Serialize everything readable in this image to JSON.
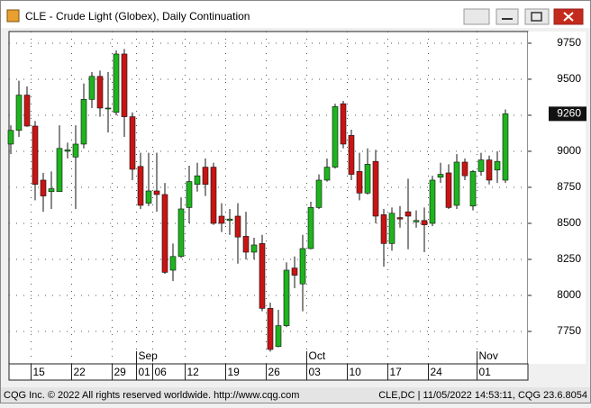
{
  "window_title": "CLE - Crude Light (Globex), Daily Continuation",
  "footer": {
    "left": "CQG Inc. © 2022 All rights reserved worldwide. http://www.cqg.com",
    "right": "CLE,DC | 11/05/2022 14:53:11, CQG 23.6.8054"
  },
  "chart_data": {
    "type": "candlestick",
    "categories": [
      "08-10",
      "08-11",
      "08-12",
      "08-15",
      "08-16",
      "08-17",
      "08-18",
      "08-19",
      "08-22",
      "08-23",
      "08-24",
      "08-25",
      "08-26",
      "08-29",
      "08-30",
      "08-31",
      "09-01",
      "09-02",
      "09-06",
      "09-07",
      "09-08",
      "09-09",
      "09-12",
      "09-13",
      "09-14",
      "09-15",
      "09-16",
      "09-19",
      "09-20",
      "09-21",
      "09-22",
      "09-23",
      "09-26",
      "09-27",
      "09-28",
      "09-29",
      "09-30",
      "10-03",
      "10-04",
      "10-05",
      "10-06",
      "10-07",
      "10-10",
      "10-11",
      "10-12",
      "10-13",
      "10-14",
      "10-17",
      "10-18",
      "10-19",
      "10-20",
      "10-21",
      "10-24",
      "10-25",
      "10-26",
      "10-27",
      "10-28",
      "10-31",
      "11-01",
      "11-02",
      "11-03",
      "11-04"
    ],
    "open": [
      9050,
      9145,
      9390,
      9175,
      8800,
      8720,
      8720,
      9000,
      8960,
      9050,
      9360,
      9520,
      9300,
      9270,
      9675,
      9240,
      8895,
      8640,
      8725,
      8700,
      8175,
      8270,
      8610,
      8770,
      8890,
      8890,
      8550,
      8520,
      8550,
      8410,
      8300,
      8360,
      7910,
      7645,
      7790,
      8190,
      8080,
      8325,
      8610,
      8800,
      8890,
      9330,
      9110,
      8860,
      8710,
      8930,
      8560,
      8360,
      8540,
      8580,
      8510,
      8520,
      8500,
      8820,
      8850,
      8625,
      8925,
      8620,
      8860,
      8940,
      8870,
      8800
    ],
    "high": [
      9180,
      9490,
      9450,
      9210,
      8850,
      8860,
      9180,
      9060,
      9180,
      9470,
      9550,
      9560,
      9550,
      9700,
      9710,
      9270,
      8990,
      8990,
      8990,
      8780,
      8360,
      8680,
      8900,
      8920,
      8950,
      8920,
      8640,
      8600,
      8640,
      8580,
      8400,
      8420,
      7950,
      7900,
      8230,
      8270,
      8420,
      8650,
      8840,
      8950,
      9330,
      9350,
      9150,
      8990,
      9020,
      9010,
      8600,
      8610,
      8620,
      8810,
      8590,
      8610,
      8830,
      8920,
      8910,
      8980,
      8950,
      8870,
      8990,
      8970,
      9000,
      9290
    ],
    "low": [
      8980,
      9100,
      9170,
      8660,
      8580,
      8600,
      8720,
      8950,
      8600,
      9020,
      9300,
      9240,
      9130,
      9250,
      9100,
      8800,
      8600,
      8620,
      8580,
      8150,
      8100,
      8260,
      8500,
      8720,
      8690,
      8490,
      8440,
      8420,
      8220,
      8250,
      8250,
      7890,
      7610,
      7640,
      7780,
      8050,
      7890,
      8320,
      8600,
      8790,
      8880,
      9020,
      8800,
      8660,
      8700,
      8500,
      8200,
      8310,
      8470,
      8320,
      8470,
      8300,
      8480,
      8780,
      8600,
      8600,
      8800,
      8590,
      8830,
      8770,
      8780,
      8780
    ],
    "close": [
      9145,
      9390,
      9175,
      8770,
      8690,
      8740,
      9020,
      9010,
      9050,
      9360,
      9520,
      9300,
      9300,
      9675,
      9240,
      8875,
      8625,
      8725,
      8700,
      8160,
      8270,
      8600,
      8790,
      8830,
      8770,
      8500,
      8500,
      8530,
      8405,
      8300,
      8350,
      7910,
      7625,
      7790,
      8175,
      8140,
      8325,
      8610,
      8800,
      8890,
      9310,
      9050,
      8840,
      8710,
      8910,
      8550,
      8360,
      8570,
      8530,
      8550,
      8520,
      8490,
      8800,
      8840,
      8610,
      8925,
      8830,
      8860,
      8940,
      8800,
      8930,
      9260
    ],
    "up_color": "#1eb41e",
    "down_color": "#c81414",
    "ylim": [
      7525,
      9831
    ],
    "yticks": [
      7750,
      8000,
      8250,
      8500,
      8750,
      9000,
      9250,
      9500,
      9750
    ],
    "grid": true,
    "xticks": [
      {
        "value": "08-15",
        "label": "15"
      },
      {
        "value": "08-22",
        "label": "22"
      },
      {
        "value": "08-29",
        "label": "29"
      },
      {
        "value": "09-01",
        "label": "01"
      },
      {
        "value": "09-06",
        "label": "06"
      },
      {
        "value": "09-12",
        "label": "12"
      },
      {
        "value": "09-19",
        "label": "19"
      },
      {
        "value": "09-26",
        "label": "26"
      },
      {
        "value": "10-03",
        "label": "03"
      },
      {
        "value": "10-10",
        "label": "10"
      },
      {
        "value": "10-17",
        "label": "17"
      },
      {
        "value": "10-24",
        "label": "24"
      },
      {
        "value": "11-01",
        "label": "01"
      }
    ],
    "month_labels": [
      {
        "value": "09-01",
        "label": "Sep"
      },
      {
        "value": "10-03",
        "label": "Oct"
      },
      {
        "value": "11-01",
        "label": "Nov"
      }
    ]
  }
}
